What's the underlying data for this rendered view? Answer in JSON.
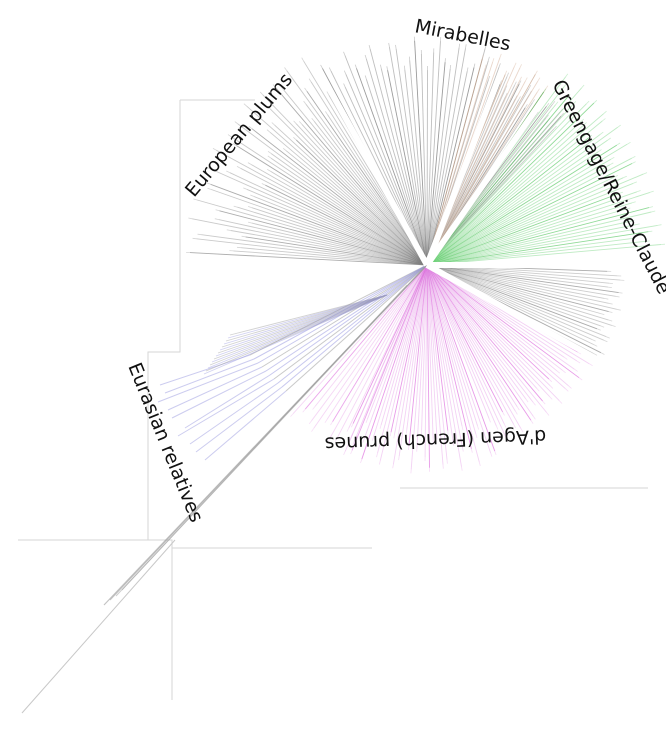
{
  "figure": {
    "labels": {
      "mirabelles": "Mirabelles",
      "european_plums": "European plums",
      "greengage": "Greengage/Reine-Claude",
      "dagen": "d'Agen (French) prunes",
      "eurasian": "Eurasian relatives"
    },
    "clades": [
      {
        "key": "european_plums",
        "color": "#8a8a8a",
        "strong": "#4a4a4a"
      },
      {
        "key": "mirabelles",
        "color": "#d7b49e",
        "strong": "#b88a6a"
      },
      {
        "key": "greengage",
        "color": "#7fd88a",
        "strong": "#22b52f"
      },
      {
        "key": "dagen",
        "color": "#e59be6",
        "strong": "#cc22cc"
      },
      {
        "key": "eurasian",
        "color": "#9a9ae0",
        "strong": "#5555c8"
      },
      {
        "key": "other",
        "color": "#9c9c9c",
        "strong": "#5a5a5a"
      }
    ]
  }
}
